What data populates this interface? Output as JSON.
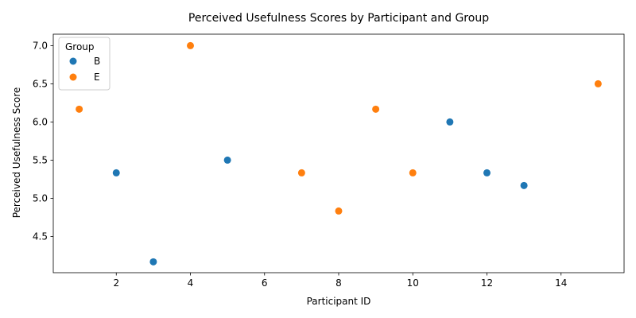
{
  "chart_data": {
    "type": "scatter",
    "title": "Perceived Usefulness Scores by Participant and Group",
    "xlabel": "Participant ID",
    "ylabel": "Perceived Usefulness Score",
    "xlim": [
      0.3,
      15.7
    ],
    "ylim": [
      4.025,
      7.15
    ],
    "xticks": [
      2,
      4,
      6,
      8,
      10,
      12,
      14
    ],
    "yticks": [
      4.5,
      5.0,
      5.5,
      6.0,
      6.5,
      7.0
    ],
    "xtick_labels": [
      "2",
      "4",
      "6",
      "8",
      "10",
      "12",
      "14"
    ],
    "ytick_labels": [
      "4.5",
      "5.0",
      "5.5",
      "6.0",
      "6.5",
      "7.0"
    ],
    "grid": false,
    "legend": {
      "title": "Group",
      "placement": "top-left"
    },
    "series": [
      {
        "name": "B",
        "color": "#1f77b4",
        "points": [
          {
            "x": 2,
            "y": 5.333
          },
          {
            "x": 3,
            "y": 4.167
          },
          {
            "x": 5,
            "y": 5.5
          },
          {
            "x": 11,
            "y": 6.0
          },
          {
            "x": 12,
            "y": 5.333
          },
          {
            "x": 13,
            "y": 5.167
          }
        ]
      },
      {
        "name": "E",
        "color": "#ff7f0e",
        "points": [
          {
            "x": 1,
            "y": 6.167
          },
          {
            "x": 4,
            "y": 7.0
          },
          {
            "x": 7,
            "y": 5.333
          },
          {
            "x": 8,
            "y": 4.833
          },
          {
            "x": 9,
            "y": 6.167
          },
          {
            "x": 10,
            "y": 5.333
          },
          {
            "x": 15,
            "y": 6.5
          }
        ]
      }
    ]
  }
}
